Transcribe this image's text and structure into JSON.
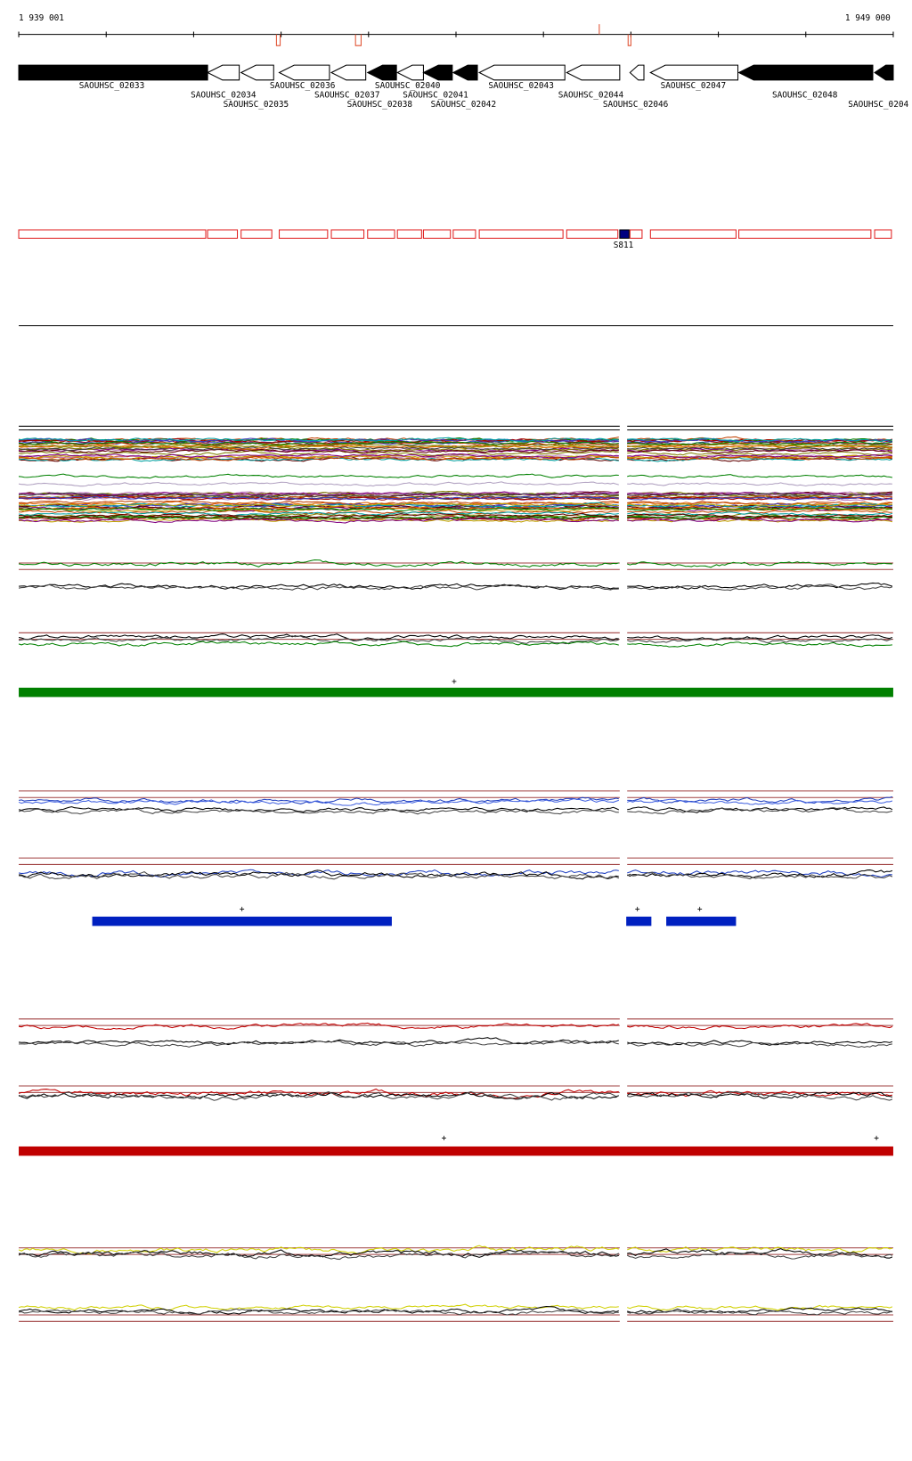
{
  "header": {
    "start": "1 939 001",
    "end": "1 949 000"
  },
  "genes": [
    {
      "label": "SAOUHSC_02033"
    },
    {
      "label": "SAOUHSC_02034"
    },
    {
      "label": "SAOUHSC_02035"
    },
    {
      "label": "SAOUHSC_02036"
    },
    {
      "label": "SAOUHSC_02037"
    },
    {
      "label": "SAOUHSC_02038"
    },
    {
      "label": "SAOUHSC_02040"
    },
    {
      "label": "SAOUHSC_02041"
    },
    {
      "label": "SAOUHSC_02042"
    },
    {
      "label": "SAOUHSC_02043"
    },
    {
      "label": "SAOUHSC_02044"
    },
    {
      "label": "SAOUHSC_02046"
    },
    {
      "label": "SAOUHSC_02047"
    },
    {
      "label": "SAOUHSC_02048"
    },
    {
      "label": "SAOUHSC_0204"
    }
  ],
  "features": [
    {
      "label": "S811"
    }
  ],
  "markers": [
    "+",
    "+",
    "+",
    "+",
    "+",
    "+"
  ]
}
